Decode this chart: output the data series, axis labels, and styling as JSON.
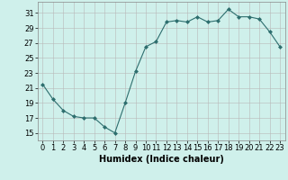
{
  "x": [
    0,
    1,
    2,
    3,
    4,
    5,
    6,
    7,
    8,
    9,
    10,
    11,
    12,
    13,
    14,
    15,
    16,
    17,
    18,
    19,
    20,
    21,
    22,
    23
  ],
  "y": [
    21.5,
    19.5,
    18.0,
    17.2,
    17.0,
    17.0,
    15.8,
    15.0,
    19.0,
    23.2,
    26.5,
    27.2,
    29.8,
    30.0,
    29.8,
    30.5,
    29.8,
    30.0,
    31.5,
    30.5,
    30.5,
    30.2,
    28.5,
    26.5
  ],
  "line_color": "#2d6e6e",
  "marker": "D",
  "marker_size": 2,
  "bg_color": "#cff0eb",
  "grid_color": "#b8b8b8",
  "xlabel": "Humidex (Indice chaleur)",
  "xlim": [
    -0.5,
    23.5
  ],
  "ylim": [
    14,
    32.5
  ],
  "yticks": [
    15,
    17,
    19,
    21,
    23,
    25,
    27,
    29,
    31
  ],
  "xtick_labels": [
    "0",
    "1",
    "2",
    "3",
    "4",
    "5",
    "6",
    "7",
    "8",
    "9",
    "10",
    "11",
    "12",
    "13",
    "14",
    "15",
    "16",
    "17",
    "18",
    "19",
    "20",
    "21",
    "22",
    "23"
  ],
  "tick_fontsize": 6,
  "xlabel_fontsize": 7
}
